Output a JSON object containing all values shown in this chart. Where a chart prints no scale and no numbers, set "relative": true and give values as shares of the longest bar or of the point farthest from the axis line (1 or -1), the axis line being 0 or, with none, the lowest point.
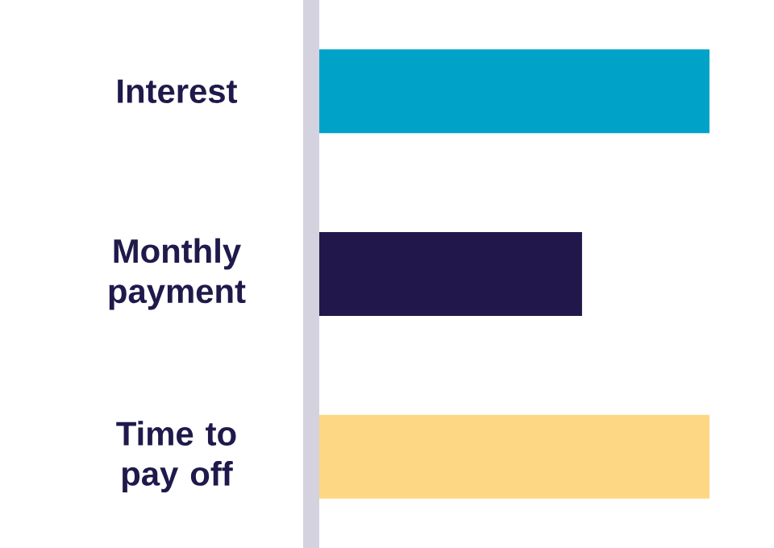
{
  "chart_data": {
    "type": "bar",
    "orientation": "horizontal",
    "relative": true,
    "categories": [
      "Interest",
      "Monthly payment",
      "Time to pay off"
    ],
    "values": [
      1,
      0.68,
      1
    ],
    "colors": [
      "#00a3c7",
      "#22174a",
      "#fdd784"
    ]
  }
}
